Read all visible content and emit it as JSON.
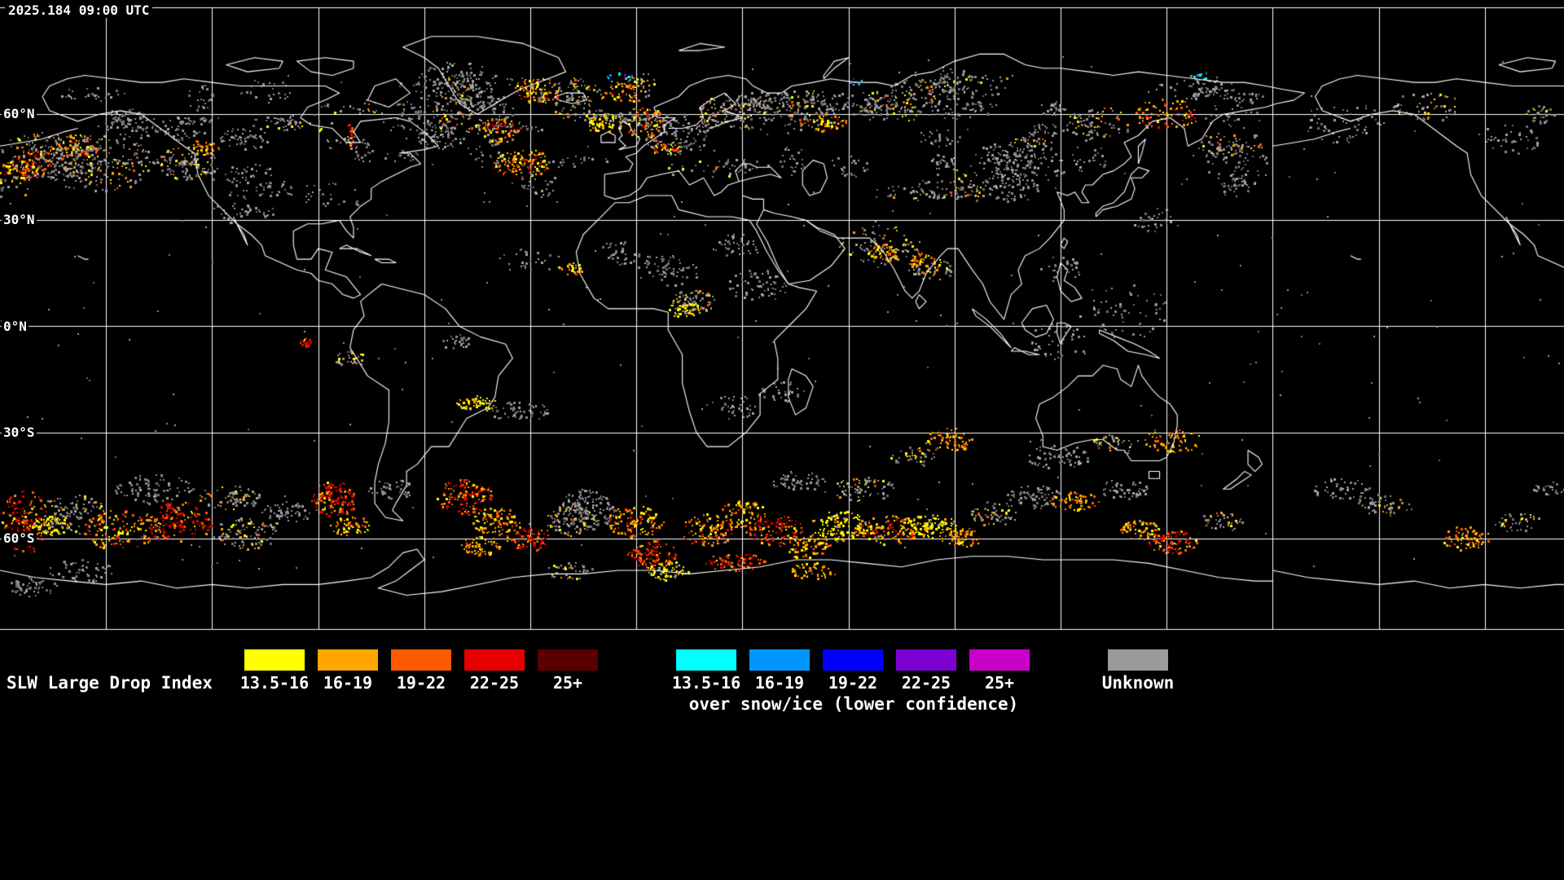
{
  "header": {
    "timestamp": "2025.184 09:00 UTC"
  },
  "map": {
    "latitude_labels": [
      "60°N",
      "30°N",
      "0°N",
      "30°S",
      "60°S"
    ],
    "background_color": "#000000",
    "grid_color": "#ffffff",
    "coastline_color": "#ffffff"
  },
  "legend": {
    "title": "SLW Large Drop Index",
    "range_labels": [
      "13.5-16",
      "16-19",
      "19-22",
      "22-25",
      "25+"
    ],
    "warm_colors": [
      "#ffff00",
      "#ffa500",
      "#ff5a00",
      "#e60000",
      "#5a0000"
    ],
    "cool_colors": [
      "#00ffff",
      "#0096ff",
      "#0000ff",
      "#7d00d2",
      "#c800c8"
    ],
    "snow_note": "over snow/ice (lower confidence)",
    "unknown_label": "Unknown",
    "unknown_color": "#9b9b9b"
  }
}
